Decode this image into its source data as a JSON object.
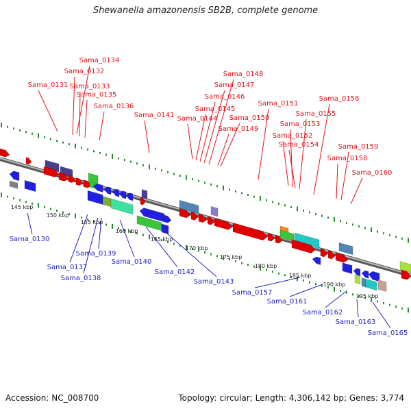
{
  "title": "Shewanella amazonensis SB2B, complete genome",
  "footer": {
    "accession": "Accession: NC_008700",
    "topology": "Topology: circular; Length: 4,306,142 bp; Genes: 3,774"
  },
  "colors": {
    "top_label": "#e8101a",
    "bottom_label": "#2020c8",
    "ruler_dots": "#2a8a2a",
    "backbone": "#808080"
  },
  "axis_ticks": [
    "145 kbp",
    "150 kbp",
    "155 kbp",
    "160 kbp",
    "165 kbp",
    "170 kbp",
    "175 kbp",
    "180 kbp",
    "185 kbp",
    "190 kbp",
    "195 kbp"
  ],
  "top_labels": [
    "Sama_0134",
    "Sama_0132",
    "Sama_0131",
    "Sama_0133",
    "Sama_0135",
    "Sama_0136",
    "Sama_0141",
    "Sama_0148",
    "Sama_0147",
    "Sama_0146",
    "Sama_0145",
    "Sama_0144",
    "Sama_0150",
    "Sama_0149",
    "Sama_0151",
    "Sama_0156",
    "Sama_0155",
    "Sama_0153",
    "Sama_0152",
    "Sama_0154",
    "Sama_0159",
    "Sama_0158",
    "Sama_0160"
  ],
  "bottom_labels": [
    "Sama_0130",
    "Sama_0137",
    "Sama_0138",
    "Sama_0139",
    "Sama_0140",
    "Sama_0142",
    "Sama_0143",
    "Sama_0157",
    "Sama_0161",
    "Sama_0162",
    "Sama_0163",
    "Sama_0165"
  ]
}
